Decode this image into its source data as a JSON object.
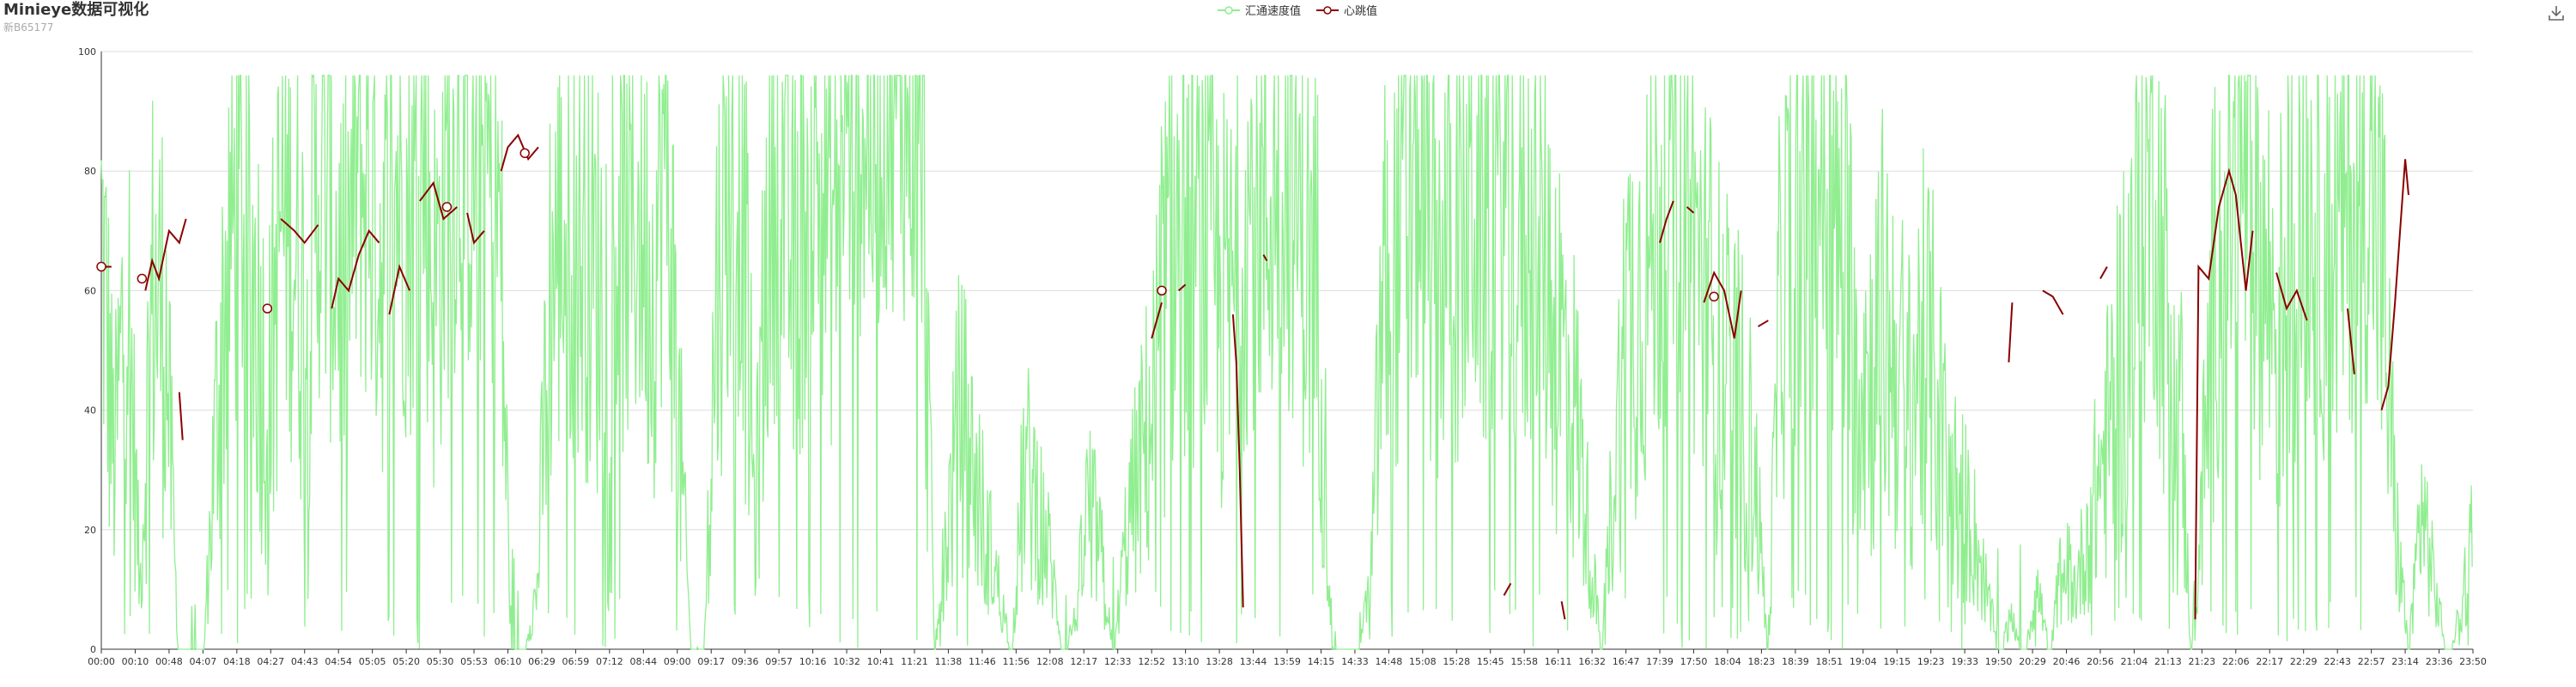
{
  "header": {
    "title": "Minieye数据可视化",
    "subtitle": "新B65177"
  },
  "toolbar": {
    "download_icon": "download-icon"
  },
  "colors": {
    "speed": "#90ee90",
    "heartbeat": "#8b0000",
    "grid": "#dddddd",
    "axis": "#333333"
  },
  "chart_data": {
    "type": "line",
    "title": "Minieye数据可视化",
    "subtitle": "新B65177",
    "legend": [
      "汇通速度值",
      "心跳值"
    ],
    "legend_position": "top-center",
    "ylim": [
      0,
      100
    ],
    "y_ticks": [
      0,
      20,
      40,
      60,
      80,
      100
    ],
    "grid": true,
    "x_tick_labels": [
      "00:00",
      "00:10",
      "00:48",
      "04:07",
      "04:18",
      "04:27",
      "04:43",
      "04:54",
      "05:05",
      "05:20",
      "05:30",
      "05:53",
      "06:10",
      "06:29",
      "06:59",
      "07:12",
      "08:44",
      "09:00",
      "09:17",
      "09:36",
      "09:57",
      "10:16",
      "10:32",
      "10:41",
      "11:21",
      "11:38",
      "11:46",
      "11:56",
      "12:08",
      "12:17",
      "12:33",
      "12:52",
      "13:10",
      "13:28",
      "13:44",
      "13:59",
      "14:15",
      "14:33",
      "14:48",
      "15:08",
      "15:28",
      "15:45",
      "15:58",
      "16:11",
      "16:32",
      "16:47",
      "17:39",
      "17:50",
      "18:04",
      "18:23",
      "18:39",
      "18:51",
      "19:04",
      "19:15",
      "19:23",
      "19:33",
      "19:50",
      "20:29",
      "20:46",
      "20:56",
      "21:04",
      "21:13",
      "21:23",
      "22:06",
      "22:17",
      "22:29",
      "22:43",
      "22:57",
      "23:14",
      "23:36",
      "23:50"
    ],
    "series": [
      {
        "name": "汇通速度值",
        "type": "line",
        "values": [
          70,
          30,
          64,
          10,
          60,
          55,
          0,
          0,
          0,
          40,
          70,
          75,
          60,
          40,
          72,
          68,
          55,
          78,
          70,
          60,
          80,
          75,
          65,
          80,
          70,
          85,
          60,
          78,
          86,
          80,
          82,
          75,
          0,
          0,
          10,
          60,
          70,
          68,
          65,
          60,
          70,
          68,
          72,
          60,
          85,
          40,
          0,
          0,
          60,
          78,
          75,
          20,
          70,
          80,
          60,
          75,
          82,
          70,
          88,
          90,
          85,
          92,
          95,
          90,
          86,
          0,
          20,
          40,
          30,
          20,
          10,
          0,
          30,
          25,
          15,
          0,
          5,
          25,
          15,
          0,
          20,
          30,
          40,
          60,
          70,
          65,
          68,
          60,
          55,
          70,
          75,
          72,
          80,
          75,
          65,
          60,
          0,
          0,
          0,
          10,
          60,
          65,
          75,
          80,
          60,
          70,
          65,
          75,
          68,
          78,
          70,
          65,
          72,
          60,
          50,
          40,
          20,
          0,
          30,
          55,
          60,
          65,
          75,
          80,
          72,
          60,
          50,
          45,
          40,
          30,
          0,
          60,
          70,
          75,
          80,
          70,
          65,
          50,
          45,
          55,
          48,
          40,
          50,
          45,
          30,
          25,
          20,
          10,
          0,
          5,
          0,
          10,
          0,
          15,
          10,
          20,
          30,
          40,
          55,
          70,
          80,
          60,
          50,
          0,
          30,
          65,
          75,
          80,
          70,
          60,
          55,
          68,
          75,
          70,
          65,
          72,
          75,
          80,
          60,
          20,
          0,
          25,
          10,
          0,
          5,
          20
        ],
        "samples_note_free": true
      },
      {
        "name": "心跳值",
        "type": "line",
        "segments": [
          [
            [
              0,
              64
            ],
            [
              0.3,
              64
            ]
          ],
          [
            [
              1.3,
              60
            ],
            [
              1.5,
              65
            ],
            [
              1.7,
              62
            ],
            [
              2.0,
              70
            ],
            [
              2.3,
              68
            ],
            [
              2.5,
              72
            ]
          ],
          [
            [
              2.3,
              43
            ],
            [
              2.4,
              35
            ]
          ],
          [
            [
              5.3,
              72
            ],
            [
              5.7,
              70
            ],
            [
              6.0,
              68
            ],
            [
              6.4,
              71
            ]
          ],
          [
            [
              6.8,
              57
            ],
            [
              7.0,
              62
            ],
            [
              7.3,
              60
            ],
            [
              7.6,
              66
            ],
            [
              7.9,
              70
            ],
            [
              8.2,
              68
            ]
          ],
          [
            [
              8.5,
              56
            ],
            [
              8.8,
              64
            ],
            [
              9.1,
              60
            ]
          ],
          [
            [
              9.4,
              75
            ],
            [
              9.8,
              78
            ],
            [
              10.1,
              72
            ],
            [
              10.5,
              74
            ]
          ],
          [
            [
              10.8,
              73
            ],
            [
              11.0,
              68
            ],
            [
              11.3,
              70
            ]
          ],
          [
            [
              11.8,
              80
            ],
            [
              12.0,
              84
            ],
            [
              12.3,
              86
            ],
            [
              12.6,
              82
            ],
            [
              12.9,
              84
            ]
          ],
          [
            [
              31.0,
              52
            ],
            [
              31.3,
              58
            ]
          ],
          [
            [
              31.8,
              60
            ],
            [
              32.0,
              61
            ]
          ],
          [
            [
              33.4,
              56
            ],
            [
              33.5,
              48
            ],
            [
              33.6,
              30
            ],
            [
              33.7,
              7
            ]
          ],
          [
            [
              34.3,
              66
            ],
            [
              34.4,
              65
            ]
          ],
          [
            [
              41.4,
              9
            ],
            [
              41.6,
              11
            ]
          ],
          [
            [
              43.1,
              8
            ],
            [
              43.2,
              5
            ]
          ],
          [
            [
              46.0,
              68
            ],
            [
              46.2,
              72
            ],
            [
              46.4,
              75
            ]
          ],
          [
            [
              46.8,
              74
            ],
            [
              47.0,
              73
            ]
          ],
          [
            [
              47.3,
              58
            ],
            [
              47.6,
              63
            ],
            [
              47.9,
              60
            ],
            [
              48.2,
              52
            ],
            [
              48.4,
              60
            ]
          ],
          [
            [
              48.9,
              54
            ],
            [
              49.2,
              55
            ]
          ],
          [
            [
              56.3,
              48
            ],
            [
              56.4,
              58
            ]
          ],
          [
            [
              57.3,
              60
            ],
            [
              57.6,
              59
            ],
            [
              57.9,
              56
            ]
          ],
          [
            [
              59.0,
              62
            ],
            [
              59.2,
              64
            ]
          ],
          [
            [
              61.8,
              5
            ],
            [
              61.9,
              64
            ],
            [
              62.2,
              62
            ],
            [
              62.5,
              74
            ],
            [
              62.8,
              80
            ],
            [
              63.0,
              76
            ],
            [
              63.3,
              60
            ],
            [
              63.5,
              70
            ]
          ],
          [
            [
              64.2,
              63
            ],
            [
              64.5,
              57
            ],
            [
              64.8,
              60
            ],
            [
              65.1,
              55
            ]
          ],
          [
            [
              66.3,
              57
            ],
            [
              66.5,
              46
            ]
          ],
          [
            [
              67.3,
              40
            ],
            [
              67.5,
              44
            ],
            [
              67.7,
              58
            ],
            [
              67.9,
              74
            ],
            [
              68.0,
              82
            ],
            [
              68.1,
              76
            ]
          ]
        ],
        "markers": [
          [
            0,
            64
          ],
          [
            1.2,
            62
          ],
          [
            4.9,
            57
          ],
          [
            10.2,
            74
          ],
          [
            12.5,
            83
          ],
          [
            31.3,
            60
          ],
          [
            47.6,
            59
          ]
        ]
      }
    ]
  }
}
